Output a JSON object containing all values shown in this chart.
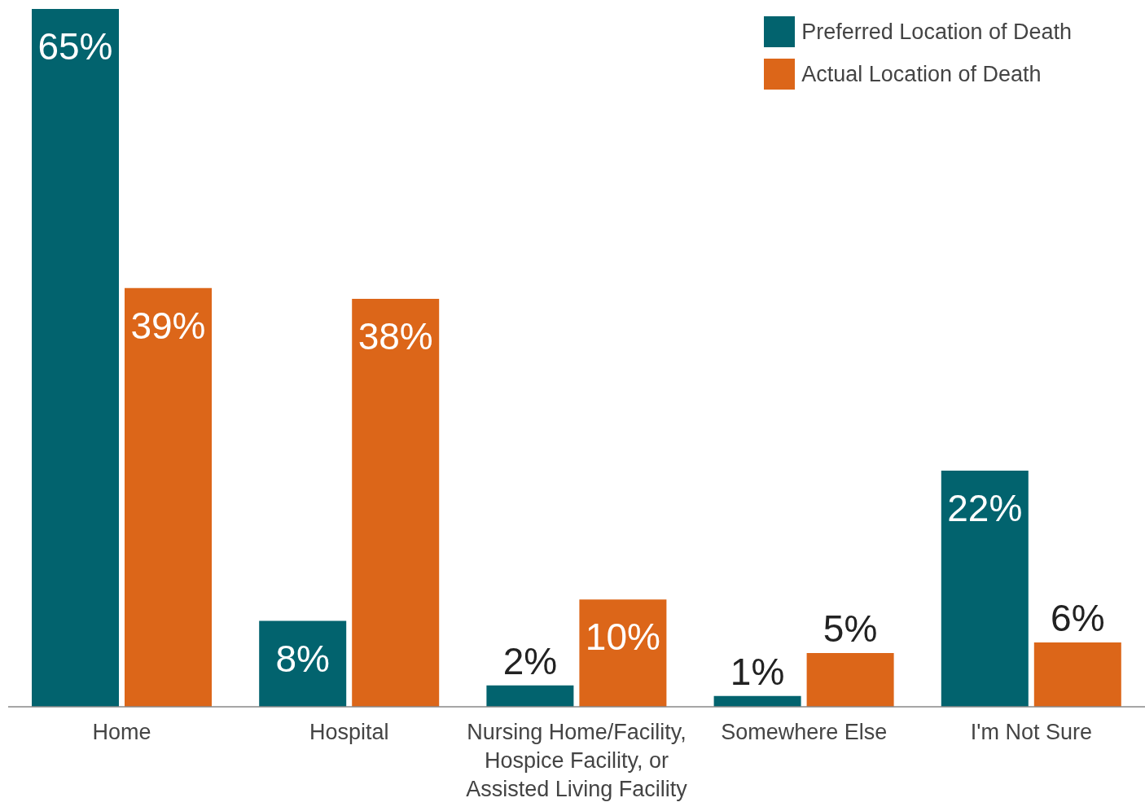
{
  "chart_data": {
    "type": "bar",
    "categories": [
      "Home",
      "Hospital",
      "Nursing Home/Facility, Hospice Facility, or Assisted Living Facility",
      "Somewhere Else",
      "I'm Not Sure"
    ],
    "series": [
      {
        "name": "Preferred Location of Death",
        "color": "#02636e",
        "values": [
          65,
          8,
          2,
          1,
          22
        ],
        "value_labels": [
          "65%",
          "8%",
          "2%",
          "1%",
          "22%"
        ]
      },
      {
        "name": "Actual Location of Death",
        "color": "#dc6619",
        "values": [
          39,
          38,
          10,
          5,
          6
        ],
        "value_labels": [
          "39%",
          "38%",
          "10%",
          "5%",
          "6%"
        ]
      }
    ],
    "legend": "top right",
    "grid": false
  }
}
